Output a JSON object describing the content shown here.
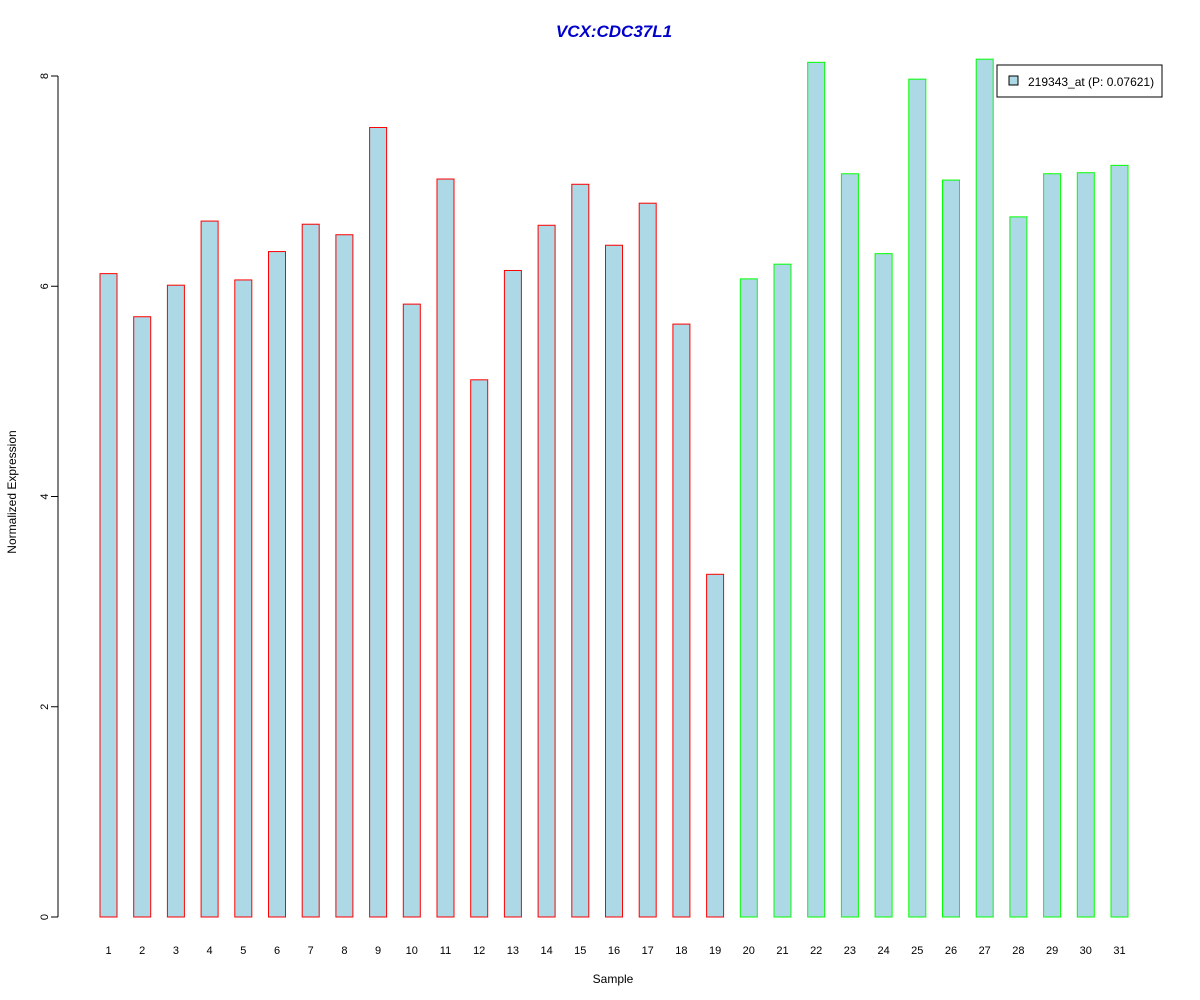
{
  "chart_data": {
    "type": "bar",
    "title": "VCX:CDC37L1",
    "xlabel": "Sample",
    "ylabel": "Normalized Expression",
    "ylim": [
      0,
      8
    ],
    "yticks": [
      0,
      2,
      4,
      6,
      8
    ],
    "grid": false,
    "legend_position": "top-right",
    "categories": [
      "1",
      "2",
      "3",
      "4",
      "5",
      "6",
      "7",
      "8",
      "9",
      "10",
      "11",
      "12",
      "13",
      "14",
      "15",
      "16",
      "17",
      "18",
      "19",
      "20",
      "21",
      "22",
      "23",
      "24",
      "25",
      "26",
      "27",
      "28",
      "29",
      "30",
      "31"
    ],
    "series": [
      {
        "name": "219343_at (P: 0.07621)",
        "values": [
          6.12,
          5.71,
          6.01,
          6.62,
          6.06,
          6.33,
          6.59,
          6.49,
          7.51,
          5.83,
          7.02,
          5.11,
          6.15,
          6.58,
          6.97,
          6.39,
          6.79,
          5.64,
          3.26,
          6.07,
          6.21,
          8.13,
          7.07,
          6.31,
          7.97,
          7.01,
          8.16,
          6.66,
          7.07,
          7.08,
          7.15
        ],
        "groups": [
          1,
          1,
          1,
          1,
          1,
          1,
          1,
          1,
          1,
          1,
          1,
          1,
          1,
          1,
          1,
          1,
          1,
          1,
          1,
          2,
          2,
          2,
          2,
          2,
          2,
          2,
          2,
          2,
          2,
          2,
          2
        ]
      }
    ],
    "colors": {
      "fill": "#add8e6",
      "group1_border": "#ff0000",
      "group2_border": "#00ff00",
      "title": "#0000cd",
      "axis": "#000000"
    }
  }
}
